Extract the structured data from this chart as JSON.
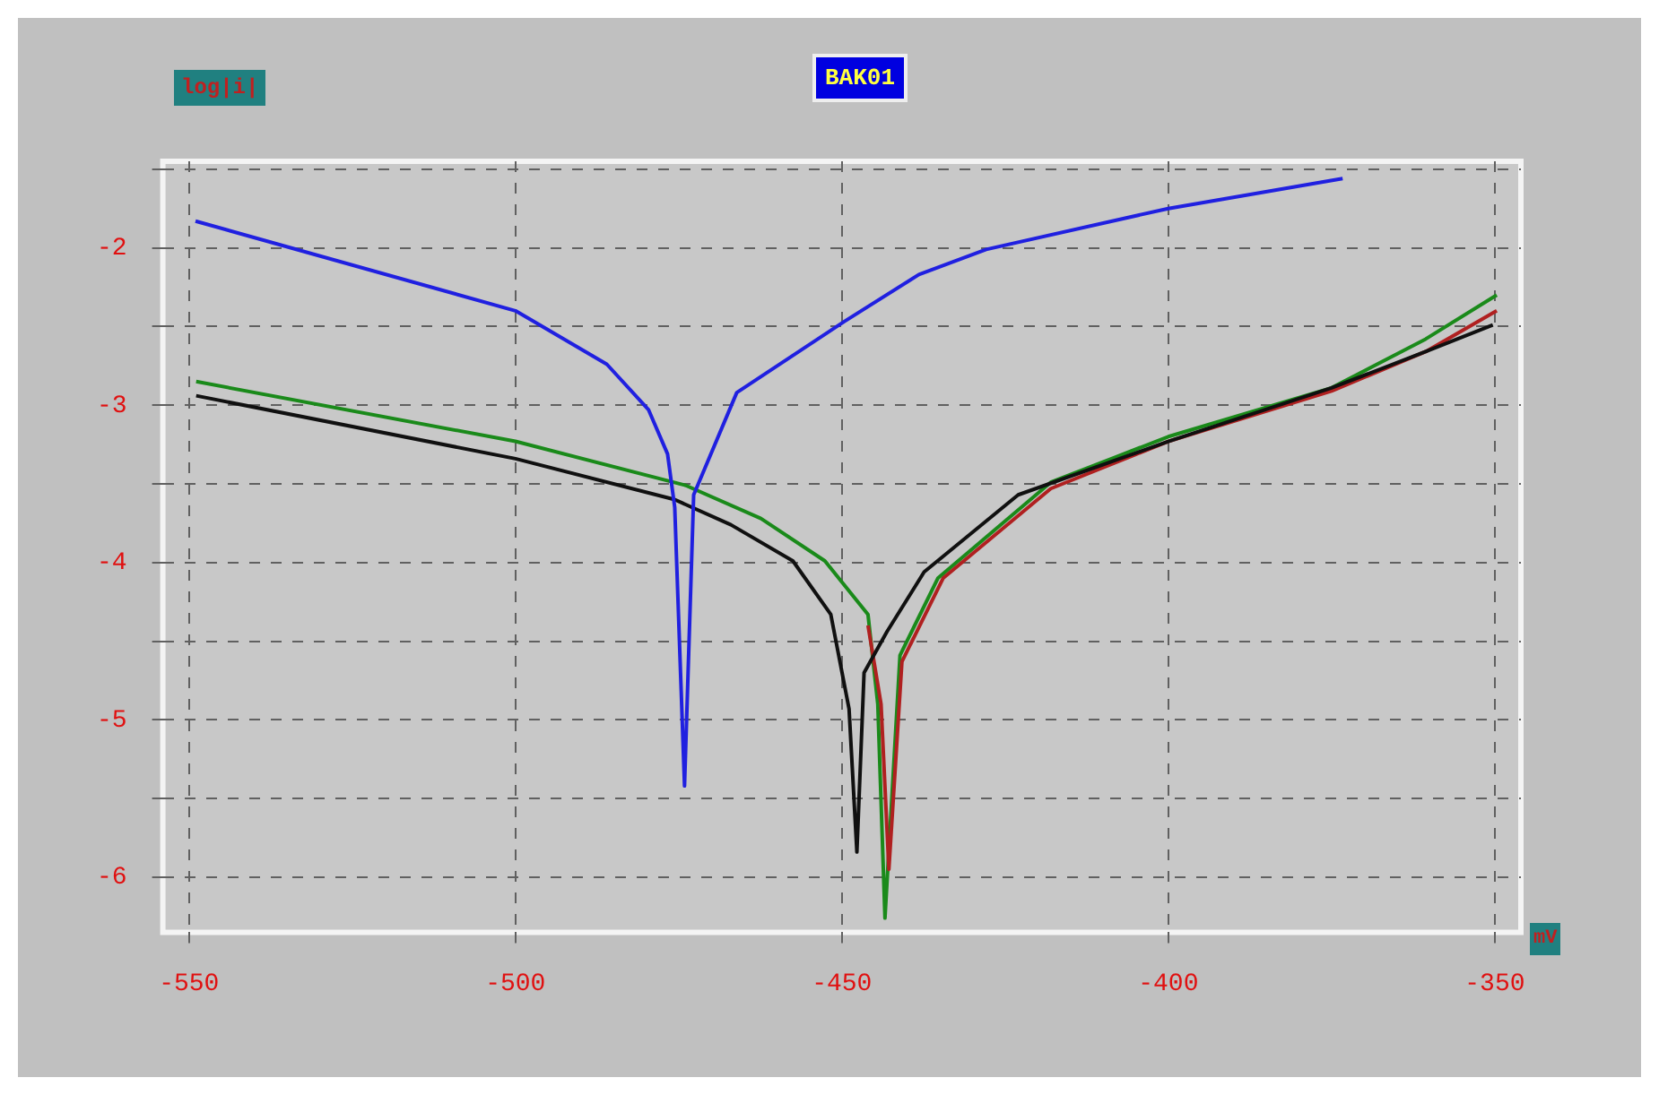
{
  "chart_data": {
    "type": "line",
    "title": "BAK01",
    "xlabel": "mV",
    "ylabel": "log|i|",
    "xlim": [
      -554,
      -346
    ],
    "ylim": [
      -6.35,
      -1.45
    ],
    "xticks": [
      -550,
      -500,
      -450,
      -400,
      -350
    ],
    "yticks": [
      -6,
      {
        "value": -5.5,
        "label": null
      },
      -5,
      {
        "value": -4.5,
        "label": null
      },
      -4,
      {
        "value": -3.5,
        "label": null
      },
      -3,
      {
        "value": -2.5,
        "label": null
      },
      -2,
      {
        "value": -1.5,
        "label": null
      }
    ],
    "grid": true,
    "legend": false,
    "marker": "none",
    "line_style": "solid",
    "series": [
      {
        "color": "#2020e0",
        "x": [
          -549,
          -500,
          -486,
          -479.6,
          -476.7,
          -475.6,
          -474.1,
          -472.7,
          -466.1,
          -449.7,
          -438.2,
          -427.9,
          -400,
          -373.3
        ],
        "values": [
          -1.83,
          -2.4,
          -2.74,
          -3.03,
          -3.31,
          -3.65,
          -5.42,
          -3.57,
          -2.92,
          -2.47,
          -2.17,
          -2.01,
          -1.75,
          -1.56
        ]
      },
      {
        "color": "#101010",
        "x": [
          -548.9,
          -500,
          -475.6,
          -467,
          -457.5,
          -451.7,
          -448.9,
          -447.7,
          -446.6,
          -443.1,
          -437.4,
          -423,
          -400,
          -375,
          -360.6,
          -350.3
        ],
        "values": [
          -2.94,
          -3.34,
          -3.6,
          -3.76,
          -3.99,
          -4.33,
          -4.93,
          -5.84,
          -4.7,
          -4.44,
          -4.06,
          -3.57,
          -3.23,
          -2.89,
          -2.66,
          -2.49
        ]
      },
      {
        "color": "#b02020",
        "x": [
          -446,
          -444,
          -442.8,
          -440.8,
          -434.5,
          -418,
          -400,
          -375,
          -360.6,
          -349.7
        ],
        "values": [
          -4.4,
          -4.9,
          -5.95,
          -4.63,
          -4.1,
          -3.53,
          -3.23,
          -2.91,
          -2.66,
          -2.4
        ]
      },
      {
        "color": "#1a8a1a",
        "x": [
          -548.9,
          -500,
          -473.9,
          -462.4,
          -452.6,
          -446,
          -444.5,
          -443.4,
          -441.1,
          -435.3,
          -418,
          -400,
          -375,
          -360.6,
          -349.7
        ],
        "values": [
          -2.85,
          -3.23,
          -3.51,
          -3.72,
          -3.99,
          -4.33,
          -4.9,
          -6.26,
          -4.59,
          -4.1,
          -3.49,
          -3.2,
          -2.89,
          -2.58,
          -2.3
        ]
      }
    ]
  }
}
